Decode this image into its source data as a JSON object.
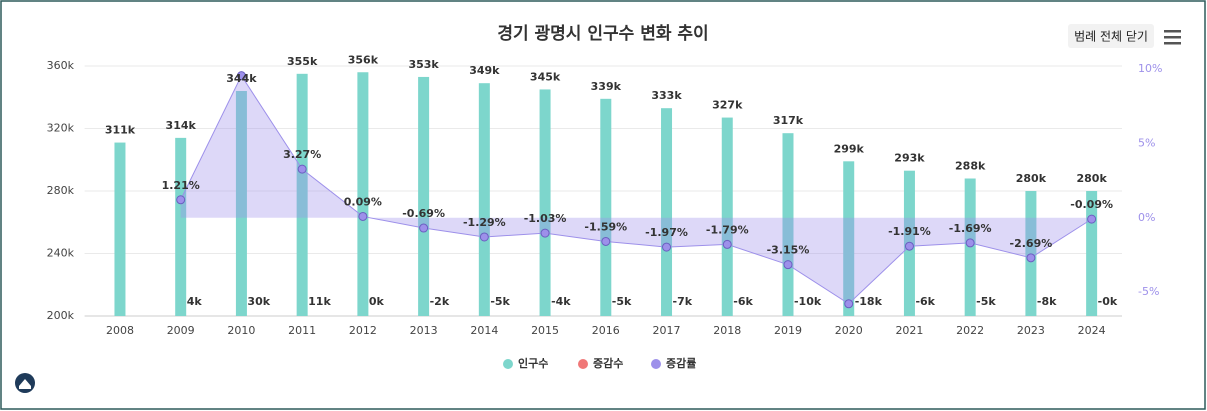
{
  "chart_data": {
    "type": "bar",
    "title": "경기 광명시 인구수 변화 추이",
    "button": "범례 전체 닫기",
    "categories": [
      "2008",
      "2009",
      "2010",
      "2011",
      "2012",
      "2013",
      "2014",
      "2015",
      "2016",
      "2017",
      "2018",
      "2019",
      "2020",
      "2021",
      "2022",
      "2023",
      "2024"
    ],
    "series": [
      {
        "name": "인구수",
        "color": "#7dd6cc",
        "values": [
          311000,
          314000,
          344000,
          355000,
          356000,
          353000,
          349000,
          345000,
          339000,
          333000,
          327000,
          317000,
          299000,
          293000,
          288000,
          280000,
          280000
        ],
        "value_labels": [
          "311k",
          "314k",
          "344k",
          "355k",
          "356k",
          "353k",
          "349k",
          "345k",
          "339k",
          "333k",
          "327k",
          "317k",
          "299k",
          "293k",
          "288k",
          "280k",
          "280k"
        ]
      },
      {
        "name": "증감수",
        "color": "#f07878",
        "values": [
          null,
          4000,
          30000,
          11000,
          300,
          -2000,
          -5000,
          -4000,
          -5000,
          -7000,
          -6000,
          -10000,
          -18000,
          -6000,
          -5000,
          -8000,
          -300
        ],
        "value_labels": [
          null,
          "4k",
          "30k",
          "11k",
          "0k",
          "-2k",
          "-5k",
          "-4k",
          "-5k",
          "-7k",
          "-6k",
          "-10k",
          "-18k",
          "-6k",
          "-5k",
          "-8k",
          "-0k"
        ]
      },
      {
        "name": "증감률",
        "color": "#9d90ea",
        "axis": "y2",
        "values": [
          null,
          1.21,
          9.55,
          3.27,
          0.09,
          -0.69,
          -1.29,
          -1.03,
          -1.59,
          -1.97,
          -1.79,
          -3.15,
          -5.78,
          -1.91,
          -1.69,
          -2.69,
          -0.09
        ],
        "value_labels": [
          null,
          "1.21%",
          null,
          "3.27%",
          "0.09%",
          "-0.69%",
          "-1.29%",
          "-1.03%",
          "-1.59%",
          "-1.97%",
          "-1.79%",
          "-3.15%",
          null,
          "-1.91%",
          "-1.69%",
          "-2.69%",
          "-0.09%"
        ]
      }
    ],
    "ylim": [
      200000,
      360000
    ],
    "yticks": [
      {
        "value": 200000,
        "label": "200k"
      },
      {
        "value": 240000,
        "label": "240k"
      },
      {
        "value": 280000,
        "label": "280k"
      },
      {
        "value": 320000,
        "label": "320k"
      },
      {
        "value": 360000,
        "label": "360k"
      }
    ],
    "y2lim": [
      -6.6,
      10.2
    ],
    "y2ticks": [
      {
        "value": -5,
        "label": "-5%"
      },
      {
        "value": 0,
        "label": "0%"
      },
      {
        "value": 5,
        "label": "5%"
      },
      {
        "value": 10,
        "label": "10%"
      }
    ],
    "grid": true
  }
}
